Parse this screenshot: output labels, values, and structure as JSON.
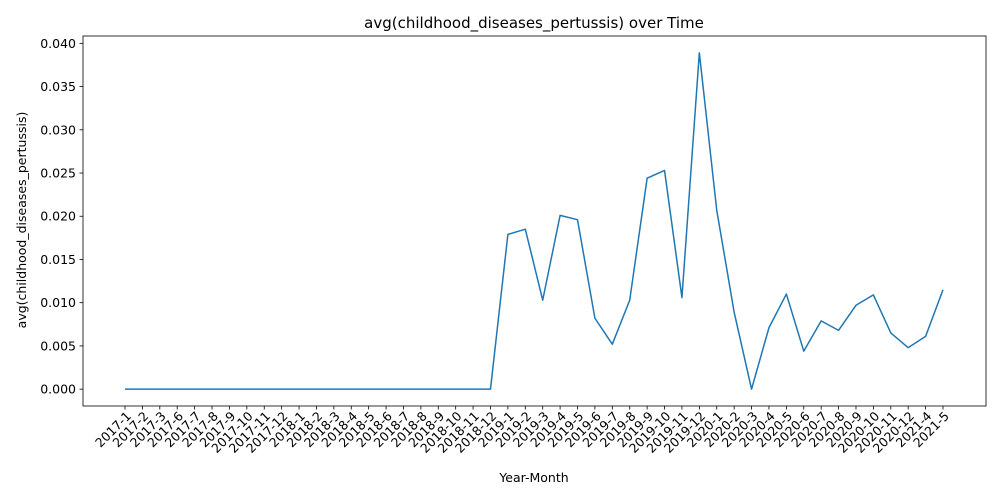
{
  "chart_data": {
    "type": "line",
    "title": "avg(childhood_diseases_pertussis) over Time",
    "xlabel": "Year-Month",
    "ylabel": "avg(childhood_diseases_pertussis)",
    "ylim": [
      -0.00195,
      0.04085
    ],
    "y_ticks": [
      0.0,
      0.005,
      0.01,
      0.015,
      0.02,
      0.025,
      0.03,
      0.035,
      0.04
    ],
    "y_tick_labels": [
      "0.000",
      "0.005",
      "0.010",
      "0.015",
      "0.020",
      "0.025",
      "0.030",
      "0.035",
      "0.040"
    ],
    "grid": false,
    "line_color": "#1f77b4",
    "series": [
      {
        "x": [
          "2017-1",
          "2017-2",
          "2017-3",
          "2017-6",
          "2017-7",
          "2017-8",
          "2017-9",
          "2017-10",
          "2017-11",
          "2017-12",
          "2018-1",
          "2018-2",
          "2018-3",
          "2018-4",
          "2018-5",
          "2018-6",
          "2018-7",
          "2018-8",
          "2018-9",
          "2018-10",
          "2018-11",
          "2018-12",
          "2019-1",
          "2019-2",
          "2019-3",
          "2019-4",
          "2019-5",
          "2019-6",
          "2019-7",
          "2019-8",
          "2019-9",
          "2019-10",
          "2019-11",
          "2019-12",
          "2020-1",
          "2020-2",
          "2020-3",
          "2020-4",
          "2020-5",
          "2020-6",
          "2020-7",
          "2020-8",
          "2020-9",
          "2020-10",
          "2020-11",
          "2020-12",
          "2021-4",
          "2021-5"
        ],
        "values": [
          0,
          0,
          0,
          0,
          0,
          0,
          0,
          0,
          0,
          0,
          0,
          0,
          0,
          0,
          0,
          0,
          0,
          0,
          0,
          0,
          0,
          0,
          0.0179,
          0.0185,
          0.0103,
          0.0201,
          0.0196,
          0.0082,
          0.0052,
          0.0103,
          0.0244,
          0.0253,
          0.0106,
          0.0389,
          0.0207,
          0.0089,
          0,
          0.0071,
          0.011,
          0.0044,
          0.0079,
          0.0068,
          0.0097,
          0.0109,
          0.0065,
          0.0048,
          0.0061,
          0.0115
        ]
      }
    ]
  }
}
